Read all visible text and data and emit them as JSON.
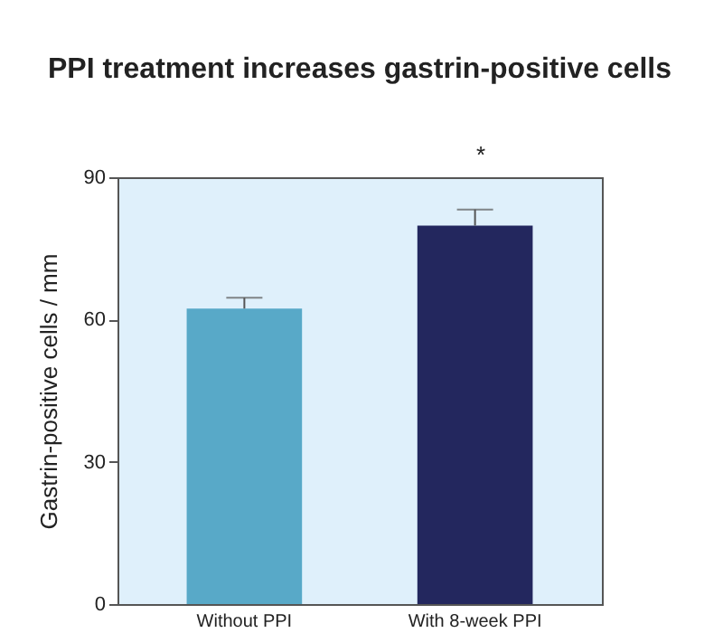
{
  "chart_data": {
    "type": "bar",
    "title": "PPI treatment increases gastrin-positive cells",
    "ylabel": "Gastrin-positive cells / mm",
    "categories": [
      "Without PPI",
      "With 8-week PPI"
    ],
    "values": [
      62.3,
      79.8
    ],
    "errors": [
      [
        62.3,
        64.6
      ],
      [
        79.8,
        83.2
      ]
    ],
    "colors": [
      "#58a9c8",
      "#23275e"
    ],
    "ylim": [
      0,
      90
    ],
    "yticks": [
      0,
      30,
      60,
      90
    ],
    "grid": false,
    "annotations": [
      "*"
    ]
  }
}
